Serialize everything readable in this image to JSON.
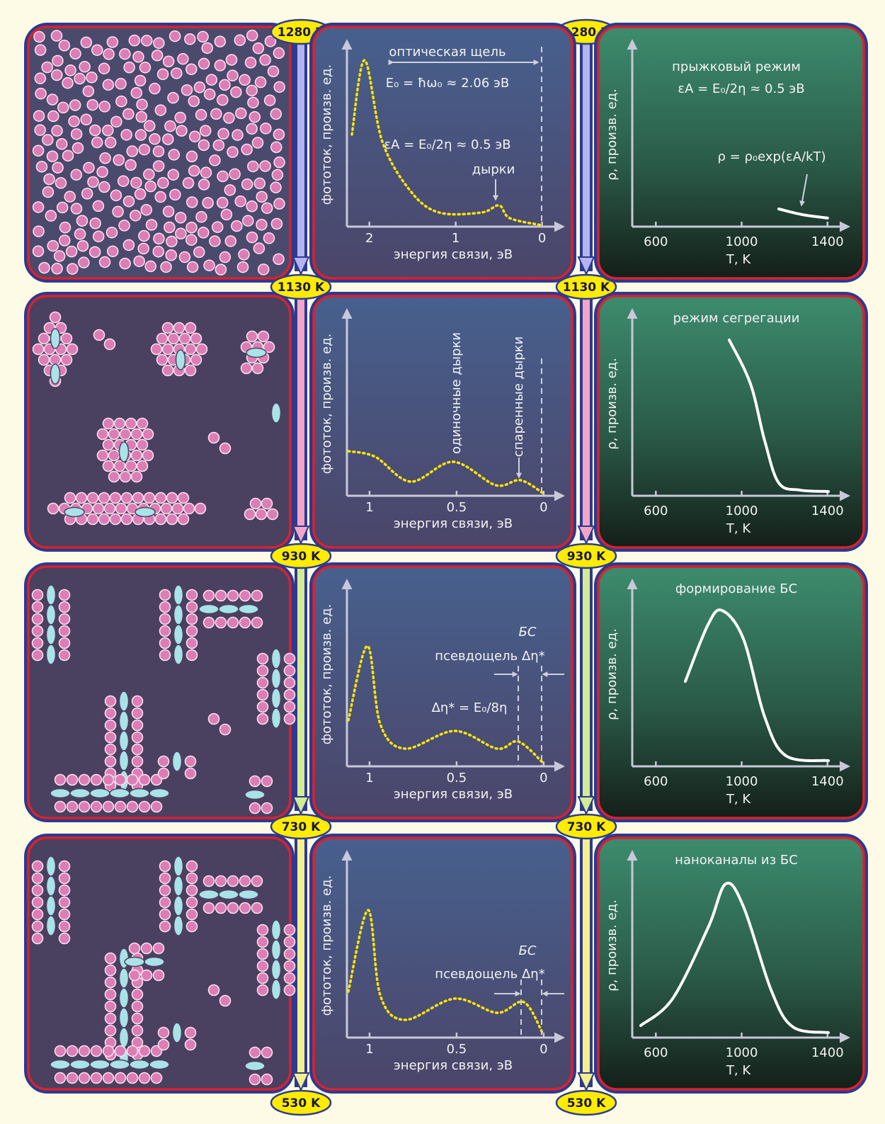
{
  "temperatures": [
    "1280 K",
    "1130 K",
    "930 K",
    "730 K",
    "530 K"
  ],
  "rows": [
    {
      "spectrum": {
        "y_label": "фототок, произв. ед.",
        "x_label": "энергия связи, эВ",
        "xlim": [
          2.26,
          -0.2
        ],
        "xticks": [
          2,
          1,
          0
        ],
        "annotations": {
          "gap": "оптическая щель",
          "e0": "E₀ = ħω₀ ≈ 2.06 эВ",
          "ea": "εА = E₀/2η ≈ 0.5 эВ",
          "holes": "дырки"
        }
      },
      "resistivity": {
        "y_label": "ρ, произв. ед.",
        "x_label": "T, K",
        "xlim": [
          490,
          1480
        ],
        "xticks": [
          600,
          1000,
          1400
        ],
        "annotations": {
          "title": "прыжковый режим",
          "subtitle": "εА = E₀/2η ≈ 0.5 эВ",
          "formula": "ρ = ρ₀exp(εА/kT)"
        }
      }
    },
    {
      "spectrum": {
        "y_label": "фототок, произв. ед.",
        "x_label": "энергия связи, эВ",
        "xlim": [
          1.13,
          -0.09
        ],
        "xticks": [
          1,
          0.5,
          0
        ],
        "annotations": {
          "single": "одиночные дырки",
          "paired": "спаренные дырки"
        }
      },
      "resistivity": {
        "y_label": "ρ, произв. ед.",
        "x_label": "T, K",
        "xlim": [
          490,
          1480
        ],
        "xticks": [
          600,
          1000,
          1400
        ],
        "annotations": {
          "title": "режим сегрегации"
        }
      }
    },
    {
      "spectrum": {
        "y_label": "фототок, произв. ед.",
        "x_label": "энергия связи, эВ",
        "xlim": [
          1.13,
          -0.09
        ],
        "xticks": [
          1,
          0.5,
          0
        ],
        "annotations": {
          "bs": "БС",
          "pseudo": "псевдощель Δη*",
          "delta": "Δη* = E₀/8η"
        }
      },
      "resistivity": {
        "y_label": "ρ, произв. ед.",
        "x_label": "T, K",
        "xlim": [
          490,
          1480
        ],
        "xticks": [
          600,
          1000,
          1400
        ],
        "annotations": {
          "title": "формирование БС"
        }
      }
    },
    {
      "spectrum": {
        "y_label": "фототок, произв. ед.",
        "x_label": "энергия связи, эВ",
        "xlim": [
          1.13,
          -0.09
        ],
        "xticks": [
          1,
          0.5,
          0
        ],
        "annotations": {
          "bs": "БС",
          "pseudo": "псевдощель Δη*"
        }
      },
      "resistivity": {
        "y_label": "ρ, произв. ед.",
        "x_label": "T, K",
        "xlim": [
          490,
          1480
        ],
        "xticks": [
          600,
          1000,
          1400
        ],
        "annotations": {
          "title": "наноканалы из БС"
        }
      }
    }
  ]
}
